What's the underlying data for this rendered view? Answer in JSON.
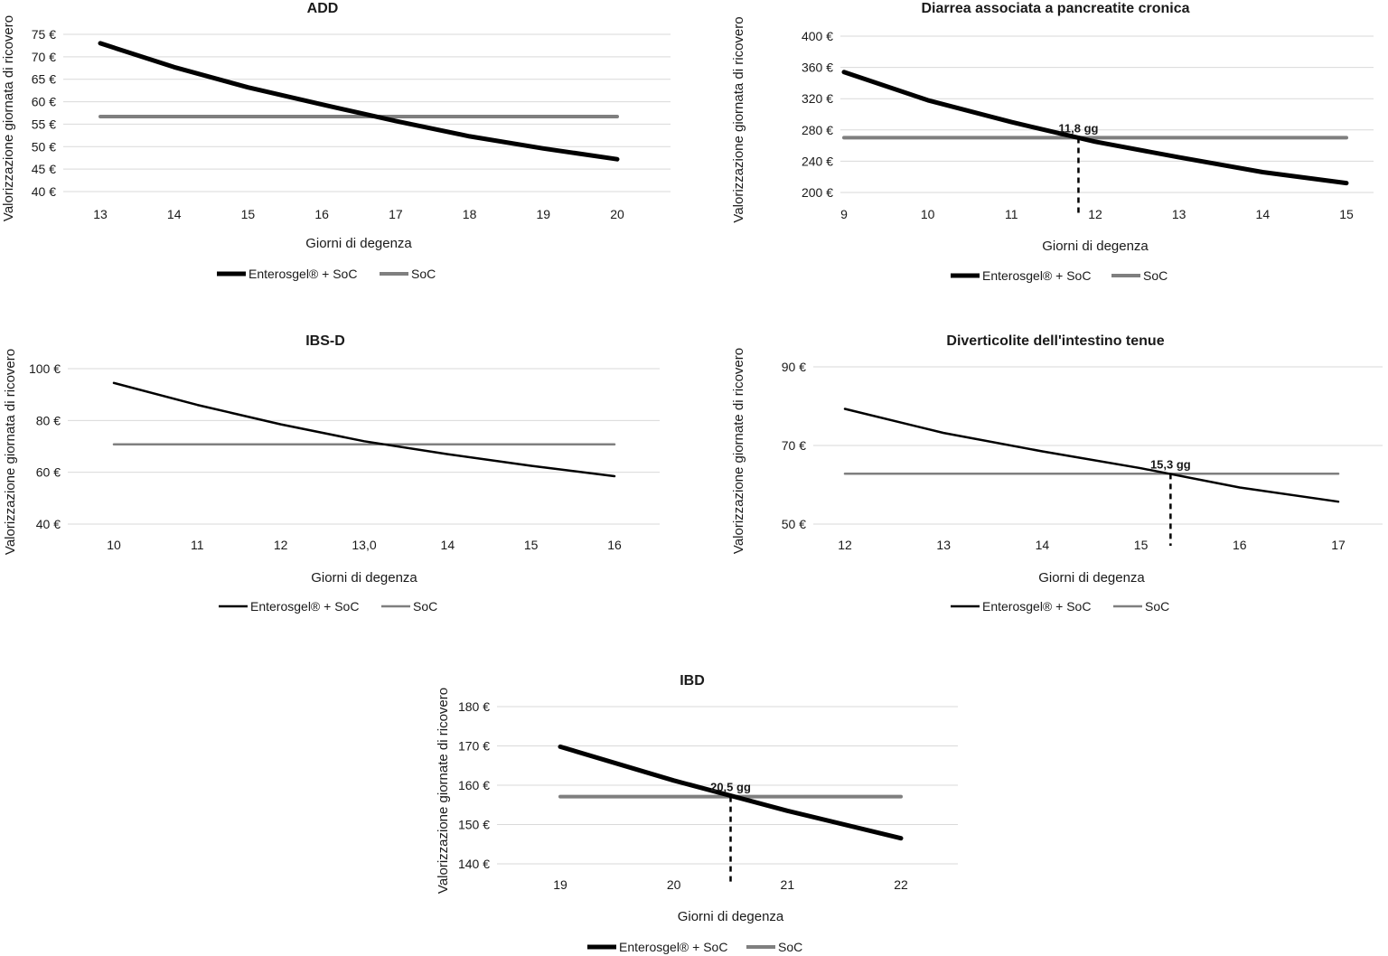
{
  "chart_data": [
    {
      "type": "line",
      "title": "ADD",
      "xlabel": "Giorni di degenza",
      "ylabel": "Valorizzazione giornata di ricovero",
      "x": [
        13,
        14,
        15,
        16,
        17,
        18,
        19,
        20
      ],
      "x_tick_labels": [
        "13",
        "14",
        "15",
        "16",
        "17",
        "18",
        "19",
        "20"
      ],
      "ylim": [
        40,
        75
      ],
      "y_ticks": [
        40,
        45,
        50,
        55,
        60,
        65,
        70,
        75
      ],
      "y_tick_labels": [
        "40 €",
        "45 €",
        "50 €",
        "55 €",
        "60 €",
        "65 €",
        "70 €",
        "75 €"
      ],
      "grid": true,
      "legend": "bottom",
      "series": [
        {
          "name": "Enterosgel® + SoC",
          "color": "#000000",
          "width": "thick",
          "values": [
            73,
            67.7,
            63.2,
            59.4,
            55.7,
            52.3,
            49.6,
            47.2
          ]
        },
        {
          "name": "SoC",
          "color": "#7f7f7f",
          "width": "thick",
          "values": [
            56.7,
            56.7,
            56.7,
            56.7,
            56.7,
            56.7,
            56.7,
            56.7
          ]
        }
      ],
      "annotation": null
    },
    {
      "type": "line",
      "title": "Diarrea associata a pancreatite cronica",
      "xlabel": "Giorni di degenza",
      "ylabel": "Valorizzazione giornata di ricovero",
      "x": [
        9,
        10,
        11,
        12,
        13,
        14,
        15
      ],
      "x_tick_labels": [
        "9",
        "10",
        "11",
        "12",
        "13",
        "14",
        "15"
      ],
      "ylim": [
        200,
        400
      ],
      "y_ticks": [
        200,
        240,
        280,
        320,
        360,
        400
      ],
      "y_tick_labels": [
        "200 €",
        "240 €",
        "280 €",
        "320 €",
        "360 €",
        "400 €"
      ],
      "grid": true,
      "legend": "bottom",
      "series": [
        {
          "name": "Enterosgel® + SoC",
          "color": "#000000",
          "width": "thick",
          "values": [
            354,
            318,
            290,
            265,
            245,
            226,
            212
          ]
        },
        {
          "name": "SoC",
          "color": "#7f7f7f",
          "width": "thick",
          "values": [
            270,
            270,
            270,
            270,
            270,
            270,
            270
          ]
        }
      ],
      "annotation": {
        "x": 11.8,
        "y": 270,
        "label": "11,8 gg"
      }
    },
    {
      "type": "line",
      "title": "IBS-D",
      "xlabel": "Giorni di degenza",
      "ylabel": "Valorizzazione giornata di ricovero",
      "x": [
        10,
        11,
        12,
        13,
        14,
        15,
        16
      ],
      "x_tick_labels": [
        "10",
        "11",
        "12",
        "13,0",
        "14",
        "15",
        "16"
      ],
      "ylim": [
        40,
        100
      ],
      "y_ticks": [
        40,
        60,
        80,
        100
      ],
      "y_tick_labels": [
        "40 €",
        "60 €",
        "80 €",
        "100 €"
      ],
      "grid": true,
      "legend": "bottom",
      "series": [
        {
          "name": "Enterosgel® + SoC",
          "color": "#000000",
          "width": "thin",
          "values": [
            94.5,
            86,
            78.5,
            72,
            67,
            62.5,
            58.5
          ]
        },
        {
          "name": "SoC",
          "color": "#7f7f7f",
          "width": "thin",
          "values": [
            70.8,
            70.8,
            70.8,
            70.8,
            70.8,
            70.8,
            70.8
          ]
        }
      ],
      "annotation": null
    },
    {
      "type": "line",
      "title": "Diverticolite dell'intestino tenue",
      "xlabel": "Giorni di degenza",
      "ylabel": "Valorizzazione giornate di ricovero",
      "x": [
        12,
        13,
        14,
        15,
        16,
        17
      ],
      "x_tick_labels": [
        "12",
        "13",
        "14",
        "15",
        "16",
        "17"
      ],
      "ylim": [
        50,
        90
      ],
      "y_ticks": [
        50,
        70,
        90
      ],
      "y_tick_labels": [
        "50 €",
        "70 €",
        "90 €"
      ],
      "grid": true,
      "legend": "bottom",
      "series": [
        {
          "name": "Enterosgel® + SoC",
          "color": "#000000",
          "width": "thin",
          "values": [
            79.3,
            73.2,
            68.5,
            64.2,
            59.3,
            55.7
          ]
        },
        {
          "name": "SoC",
          "color": "#7f7f7f",
          "width": "thin",
          "values": [
            62.8,
            62.8,
            62.8,
            62.8,
            62.8,
            62.8
          ]
        }
      ],
      "annotation": {
        "x": 15.3,
        "y": 62.8,
        "label": "15,3 gg"
      }
    },
    {
      "type": "line",
      "title": "IBD",
      "xlabel": "Giorni di degenza",
      "ylabel": "Valorizzazione giornate di ricovero",
      "x": [
        19,
        20,
        21,
        22
      ],
      "x_tick_labels": [
        "19",
        "20",
        "21",
        "22"
      ],
      "ylim": [
        140,
        180
      ],
      "y_ticks": [
        140,
        150,
        160,
        170,
        180
      ],
      "y_tick_labels": [
        "140 €",
        "150 €",
        "160 €",
        "170 €",
        "180 €"
      ],
      "grid": true,
      "legend": "bottom",
      "series": [
        {
          "name": "Enterosgel® + SoC",
          "color": "#000000",
          "width": "thick",
          "values": [
            169.8,
            161.2,
            153.5,
            146.5
          ]
        },
        {
          "name": "SoC",
          "color": "#7f7f7f",
          "width": "thick",
          "values": [
            157.1,
            157.1,
            157.1,
            157.1
          ]
        }
      ],
      "annotation": {
        "x": 20.5,
        "y": 157.1,
        "label": "20,5 gg"
      }
    }
  ]
}
